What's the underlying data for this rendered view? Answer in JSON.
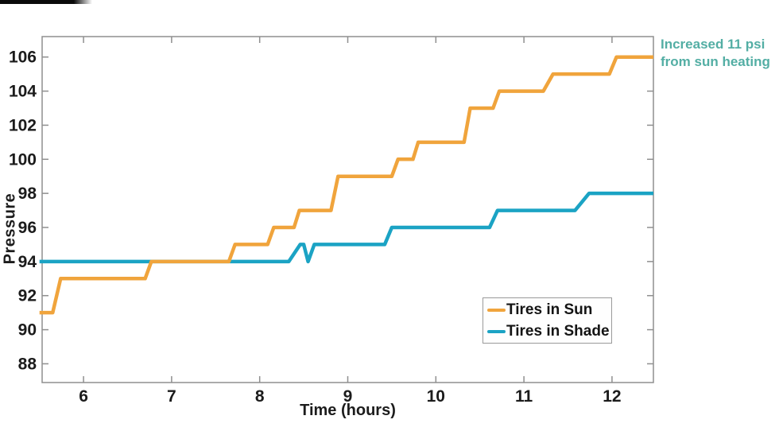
{
  "figure": {
    "xlabel": "Time (hours)",
    "ylabel": "Pressure",
    "annotation": {
      "line1": "Increased 11 psi",
      "line2": "from sun heating",
      "color": "#53AEA4"
    }
  },
  "legend": {
    "items": [
      {
        "label": "Tires in Sun",
        "color": "#F0A43C"
      },
      {
        "label": "Tires in Shade",
        "color": "#1BA3C4"
      }
    ]
  },
  "chart_data": {
    "type": "line",
    "subtype": "step",
    "title": "",
    "xlabel": "Time (hours)",
    "ylabel": "Pressure",
    "xlim": [
      5.53,
      12.47
    ],
    "ylim": [
      86.9,
      107.2
    ],
    "x_ticks": [
      6,
      7,
      8,
      9,
      10,
      11,
      12
    ],
    "y_ticks": [
      88,
      90,
      92,
      94,
      96,
      98,
      100,
      102,
      104,
      106
    ],
    "grid": false,
    "legend_position": "inside-lower-right",
    "annotation": "Increased 11 psi from sun heating",
    "axis_color": "#8f8f8f",
    "series": [
      {
        "name": "Tires in Shade",
        "color": "#1BA3C4",
        "points": [
          [
            5.5,
            94
          ],
          [
            8.33,
            94
          ],
          [
            8.46,
            95
          ],
          [
            8.5,
            95
          ],
          [
            8.55,
            94
          ],
          [
            8.62,
            95
          ],
          [
            9.42,
            95
          ],
          [
            9.5,
            96
          ],
          [
            10.61,
            96
          ],
          [
            10.7,
            97
          ],
          [
            11.58,
            97
          ],
          [
            11.74,
            98
          ],
          [
            12.47,
            98
          ]
        ]
      },
      {
        "name": "Tires in Sun",
        "color": "#F0A43C",
        "points": [
          [
            5.5,
            91
          ],
          [
            5.65,
            91
          ],
          [
            5.74,
            93
          ],
          [
            6.7,
            93
          ],
          [
            6.77,
            94
          ],
          [
            7.65,
            94
          ],
          [
            7.72,
            95
          ],
          [
            8.09,
            95
          ],
          [
            8.16,
            96
          ],
          [
            8.39,
            96
          ],
          [
            8.45,
            97
          ],
          [
            8.81,
            97
          ],
          [
            8.89,
            99
          ],
          [
            9.5,
            99
          ],
          [
            9.57,
            100
          ],
          [
            9.74,
            100
          ],
          [
            9.8,
            101
          ],
          [
            10.32,
            101
          ],
          [
            10.39,
            103
          ],
          [
            10.65,
            103
          ],
          [
            10.72,
            104
          ],
          [
            11.22,
            104
          ],
          [
            11.33,
            105
          ],
          [
            11.97,
            105
          ],
          [
            12.05,
            106
          ],
          [
            12.47,
            106
          ]
        ]
      }
    ]
  }
}
